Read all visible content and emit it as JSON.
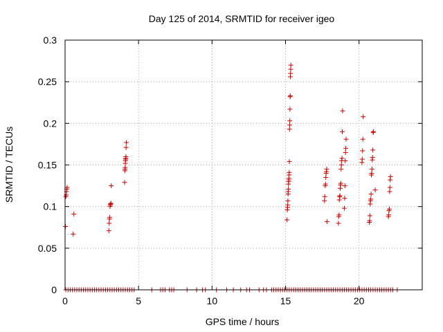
{
  "chart_data": {
    "type": "scatter",
    "title": "Day 125 of 2014, SRMTID for receiver igeo",
    "xlabel": "GPS time / hours",
    "ylabel": "SRMTID / TECUs",
    "xlim": [
      0,
      24.3
    ],
    "ylim": [
      0,
      0.3
    ],
    "xticks": [
      0,
      5,
      10,
      15,
      20
    ],
    "xtick_labels": [
      "0",
      "5",
      "10",
      "15",
      "20"
    ],
    "yticks": [
      0,
      0.05,
      0.1,
      0.15,
      0.2,
      0.25,
      0.3
    ],
    "ytick_labels": [
      "0",
      "0.05",
      "0.1",
      "0.15",
      "0.2",
      "0.25",
      "0.3"
    ],
    "grid": true,
    "marker": "+",
    "color": "#cc0000",
    "series": [
      {
        "name": "SRMTID",
        "points": [
          [
            0.03,
            0.076
          ],
          [
            0.05,
            0.112
          ],
          [
            0.08,
            0.114
          ],
          [
            0.1,
            0.118
          ],
          [
            0.12,
            0.121
          ],
          [
            0.14,
            0.123
          ],
          [
            0.55,
            0.067
          ],
          [
            0.6,
            0.091
          ],
          [
            2.98,
            0.071
          ],
          [
            3.0,
            0.08
          ],
          [
            3.02,
            0.085
          ],
          [
            3.04,
            0.087
          ],
          [
            3.06,
            0.1
          ],
          [
            3.08,
            0.102
          ],
          [
            3.1,
            0.103
          ],
          [
            3.12,
            0.104
          ],
          [
            3.14,
            0.125
          ],
          [
            4.05,
            0.129
          ],
          [
            4.07,
            0.143
          ],
          [
            4.08,
            0.145
          ],
          [
            4.09,
            0.147
          ],
          [
            4.1,
            0.152
          ],
          [
            4.11,
            0.155
          ],
          [
            4.12,
            0.157
          ],
          [
            4.13,
            0.158
          ],
          [
            4.14,
            0.16
          ],
          [
            4.15,
            0.171
          ],
          [
            4.17,
            0.177
          ],
          [
            15.1,
            0.084
          ],
          [
            15.12,
            0.096
          ],
          [
            15.14,
            0.099
          ],
          [
            15.15,
            0.102
          ],
          [
            15.16,
            0.107
          ],
          [
            15.17,
            0.115
          ],
          [
            15.18,
            0.118
          ],
          [
            15.19,
            0.121
          ],
          [
            15.2,
            0.127
          ],
          [
            15.21,
            0.13
          ],
          [
            15.22,
            0.132
          ],
          [
            15.23,
            0.134
          ],
          [
            15.24,
            0.138
          ],
          [
            15.25,
            0.141
          ],
          [
            15.26,
            0.154
          ],
          [
            15.27,
            0.193
          ],
          [
            15.28,
            0.198
          ],
          [
            15.29,
            0.203
          ],
          [
            15.3,
            0.217
          ],
          [
            15.31,
            0.232
          ],
          [
            15.32,
            0.233
          ],
          [
            15.33,
            0.256
          ],
          [
            15.34,
            0.26
          ],
          [
            15.35,
            0.265
          ],
          [
            15.36,
            0.27
          ],
          [
            17.65,
            0.107
          ],
          [
            17.67,
            0.112
          ],
          [
            17.7,
            0.125
          ],
          [
            17.72,
            0.127
          ],
          [
            17.74,
            0.135
          ],
          [
            17.76,
            0.14
          ],
          [
            17.78,
            0.142
          ],
          [
            17.8,
            0.145
          ],
          [
            17.82,
            0.082
          ],
          [
            18.6,
            0.08
          ],
          [
            18.62,
            0.088
          ],
          [
            18.64,
            0.09
          ],
          [
            18.66,
            0.108
          ],
          [
            18.68,
            0.112
          ],
          [
            18.7,
            0.113
          ],
          [
            18.72,
            0.122
          ],
          [
            18.74,
            0.126
          ],
          [
            18.76,
            0.128
          ],
          [
            18.78,
            0.145
          ],
          [
            18.8,
            0.15
          ],
          [
            18.82,
            0.155
          ],
          [
            18.84,
            0.158
          ],
          [
            18.86,
            0.19
          ],
          [
            18.88,
            0.215
          ],
          [
            19.0,
            0.098
          ],
          [
            19.02,
            0.11
          ],
          [
            19.04,
            0.125
          ],
          [
            19.06,
            0.155
          ],
          [
            19.08,
            0.165
          ],
          [
            19.1,
            0.17
          ],
          [
            19.12,
            0.181
          ],
          [
            20.2,
            0.153
          ],
          [
            20.22,
            0.157
          ],
          [
            20.24,
            0.167
          ],
          [
            20.26,
            0.181
          ],
          [
            20.28,
            0.208
          ],
          [
            20.7,
            0.081
          ],
          [
            20.72,
            0.083
          ],
          [
            20.74,
            0.089
          ],
          [
            20.76,
            0.103
          ],
          [
            20.78,
            0.107
          ],
          [
            20.8,
            0.109
          ],
          [
            20.82,
            0.115
          ],
          [
            20.84,
            0.138
          ],
          [
            20.86,
            0.14
          ],
          [
            20.88,
            0.145
          ],
          [
            20.9,
            0.156
          ],
          [
            20.92,
            0.159
          ],
          [
            20.94,
            0.168
          ],
          [
            20.96,
            0.189
          ],
          [
            20.98,
            0.19
          ],
          [
            21.1,
            0.12
          ],
          [
            22.0,
            0.088
          ],
          [
            22.02,
            0.09
          ],
          [
            22.04,
            0.095
          ],
          [
            22.06,
            0.097
          ],
          [
            22.08,
            0.118
          ],
          [
            22.1,
            0.123
          ],
          [
            22.12,
            0.132
          ],
          [
            22.14,
            0.136
          ]
        ],
        "zero_times": [
          0.05,
          0.2,
          0.35,
          0.5,
          0.65,
          0.8,
          0.95,
          1.1,
          1.25,
          1.4,
          1.55,
          1.7,
          1.85,
          2.0,
          2.15,
          2.3,
          2.45,
          2.6,
          2.75,
          2.9,
          3.05,
          3.2,
          3.35,
          3.5,
          3.65,
          3.8,
          3.95,
          4.1,
          4.25,
          4.4,
          4.55,
          4.7,
          5.9,
          6.5,
          6.65,
          6.8,
          7.1,
          7.25,
          7.4,
          8.3,
          8.95,
          9.35,
          9.55,
          10.3,
          11.0,
          11.45,
          11.95,
          12.35,
          12.55,
          13.2,
          13.5,
          13.7,
          14.05,
          14.2,
          14.35,
          14.5,
          14.65,
          14.8,
          14.95,
          15.1,
          15.25,
          15.4,
          15.55,
          15.7,
          15.85,
          16.0,
          16.15,
          16.3,
          16.45,
          16.6,
          16.75,
          16.9,
          17.05,
          17.2,
          17.35,
          17.5,
          17.65,
          17.8,
          17.95,
          18.1,
          18.25,
          18.4,
          18.55,
          18.7,
          18.85,
          19.0,
          19.15,
          19.3,
          19.45,
          19.6,
          19.75,
          19.9,
          20.05,
          20.2,
          20.35,
          20.5,
          20.65,
          20.8,
          20.95,
          21.1,
          21.25,
          21.4,
          21.55,
          21.7,
          21.85,
          22.0,
          22.15,
          22.3,
          22.6
        ]
      }
    ]
  }
}
